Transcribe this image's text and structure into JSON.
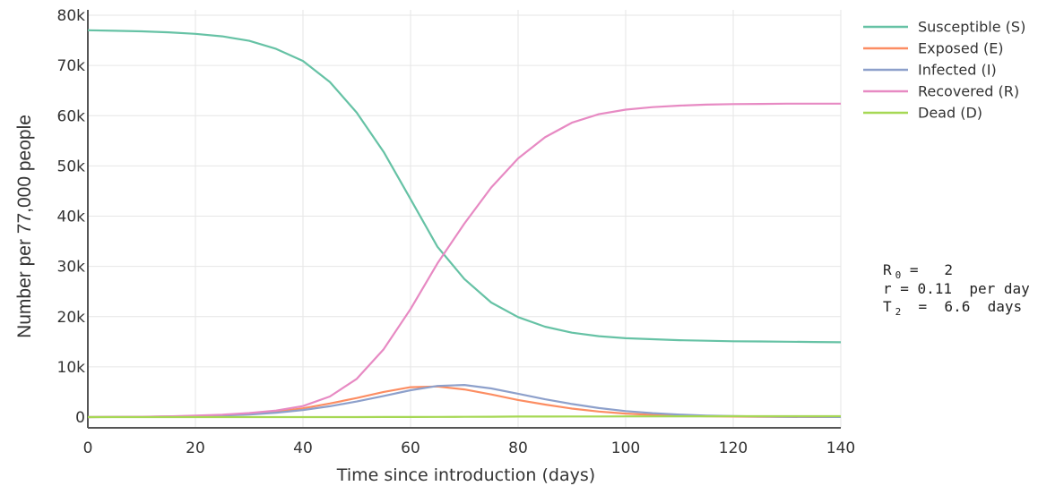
{
  "chart_data": {
    "type": "line",
    "xlabel": "Time since introduction (days)",
    "ylabel": "Number per 77,000 people",
    "xlim": [
      0,
      140
    ],
    "ylim": [
      -2000,
      81000
    ],
    "xticks": [
      0,
      20,
      40,
      60,
      80,
      100,
      120,
      140
    ],
    "yticks": [
      0,
      10000,
      20000,
      30000,
      40000,
      50000,
      60000,
      70000,
      80000
    ],
    "ytick_labels": [
      "0",
      "10k",
      "20k",
      "30k",
      "40k",
      "50k",
      "60k",
      "70k",
      "80k"
    ],
    "grid": true,
    "legend_position": "top-right",
    "x": [
      0,
      5,
      10,
      15,
      20,
      25,
      30,
      35,
      40,
      45,
      50,
      55,
      60,
      65,
      70,
      75,
      80,
      85,
      90,
      95,
      100,
      105,
      110,
      115,
      120,
      125,
      130,
      135,
      140
    ],
    "series": [
      {
        "name": "Susceptible (S)",
        "color": "#66c2a5",
        "values": [
          77000,
          76900,
          76800,
          76600,
          76300,
          75800,
          74900,
          73300,
          70900,
          66700,
          60600,
          52800,
          43400,
          33900,
          27500,
          22800,
          19900,
          18000,
          16800,
          16100,
          15700,
          15500,
          15300,
          15200,
          15100,
          15050,
          15000,
          14950,
          14900
        ]
      },
      {
        "name": "Exposed (E)",
        "color": "#fc8d62",
        "values": [
          0,
          30,
          60,
          120,
          220,
          380,
          640,
          1050,
          1750,
          2700,
          3800,
          5000,
          5950,
          6100,
          5500,
          4500,
          3400,
          2500,
          1700,
          1100,
          700,
          450,
          280,
          180,
          110,
          70,
          40,
          25,
          15
        ]
      },
      {
        "name": "Infected (I)",
        "color": "#8da0cb",
        "values": [
          0,
          20,
          50,
          100,
          180,
          310,
          520,
          870,
          1400,
          2150,
          3100,
          4200,
          5350,
          6200,
          6400,
          5700,
          4650,
          3550,
          2600,
          1800,
          1200,
          780,
          500,
          310,
          190,
          120,
          70,
          45,
          25
        ]
      },
      {
        "name": "Recovered (R)",
        "color": "#e78ac3",
        "values": [
          0,
          30,
          70,
          150,
          280,
          480,
          800,
          1300,
          2200,
          4100,
          7600,
          13500,
          21500,
          30600,
          38500,
          45700,
          51500,
          55700,
          58600,
          60300,
          61200,
          61700,
          62000,
          62200,
          62300,
          62350,
          62400,
          62400,
          62400
        ]
      },
      {
        "name": "Dead (D)",
        "color": "#a6d854",
        "values": [
          0,
          0,
          0,
          0,
          0,
          0,
          0,
          0,
          0,
          0,
          0,
          10,
          20,
          40,
          60,
          80,
          100,
          110,
          120,
          130,
          140,
          150,
          160,
          160,
          170,
          170,
          170,
          170,
          170
        ]
      }
    ],
    "annotations": {
      "r0": {
        "letter": "R",
        "sub": "0",
        "rest": " =   2"
      },
      "r": "r = 0.11  per day",
      "t2": {
        "letter": "T",
        "sub": "2",
        "rest": "  =  6.6  days"
      }
    }
  }
}
